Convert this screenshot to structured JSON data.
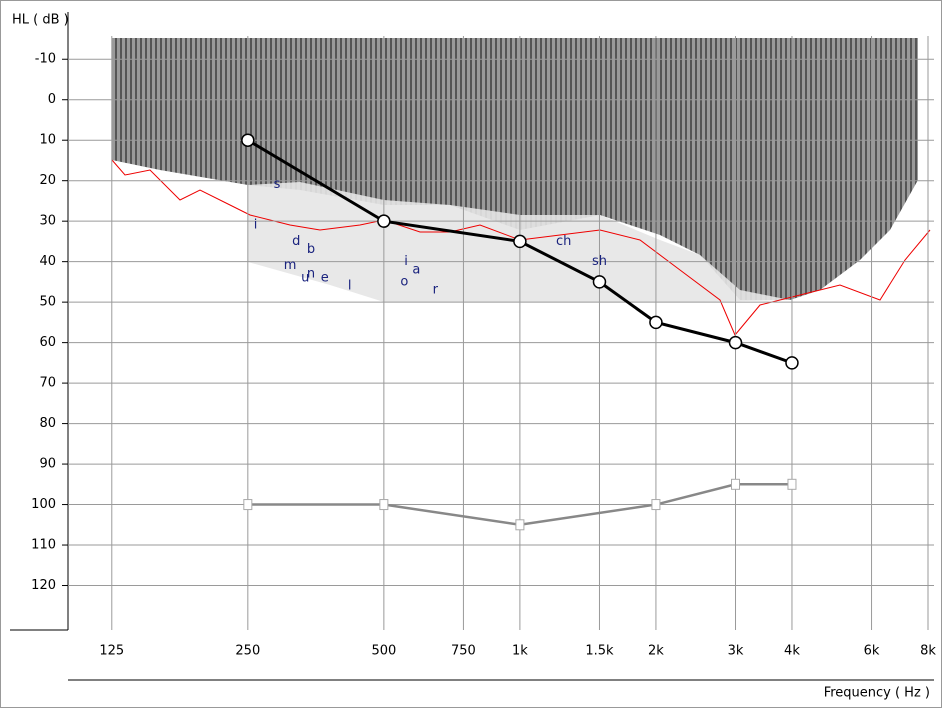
{
  "chart_data": {
    "type": "line",
    "y_label": "HL ( dB )",
    "x_label": "Frequency ( Hz )",
    "log_x": true,
    "xlim": [
      100,
      8000
    ],
    "xticks": [
      125,
      250,
      500,
      750,
      {
        "value": 1000,
        "label": "1k"
      },
      {
        "value": 1500,
        "label": "1.5k"
      },
      {
        "value": 2000,
        "label": "2k"
      },
      {
        "value": 3000,
        "label": "3k"
      },
      {
        "value": 4000,
        "label": "4k"
      },
      {
        "value": 6000,
        "label": "6k"
      },
      {
        "value": 8000,
        "label": "8k"
      }
    ],
    "ylim": [
      -15,
      130
    ],
    "yticks": [
      -10,
      0,
      10,
      20,
      30,
      40,
      50,
      60,
      70,
      80,
      90,
      100,
      110,
      120
    ],
    "inverted_y": true,
    "grid": true,
    "series": [
      {
        "color": "#000000",
        "marker": "circle",
        "x": [
          250,
          500,
          1000,
          1500,
          2000,
          3000,
          4000
        ],
        "values": [
          10,
          30,
          35,
          45,
          55,
          60,
          65
        ]
      },
      {
        "color": "#888888",
        "marker": "square",
        "x": [
          250,
          500,
          1000,
          2000,
          3000,
          4000
        ],
        "values": [
          100,
          100,
          105,
          100,
          95,
          95
        ]
      }
    ],
    "speech_sounds": {
      "labels": [
        "s",
        "i",
        "d",
        "b",
        "m",
        "n",
        "u",
        "e",
        "l",
        "i",
        "a",
        "o",
        "r",
        "ch",
        "sh"
      ],
      "x": [
        290,
        260,
        320,
        345,
        310,
        345,
        335,
        370,
        420,
        560,
        590,
        555,
        650,
        1250,
        1500
      ],
      "values": [
        21,
        31,
        35,
        37,
        41,
        43,
        44,
        44,
        46,
        40,
        42,
        45,
        47,
        35,
        40
      ]
    }
  }
}
